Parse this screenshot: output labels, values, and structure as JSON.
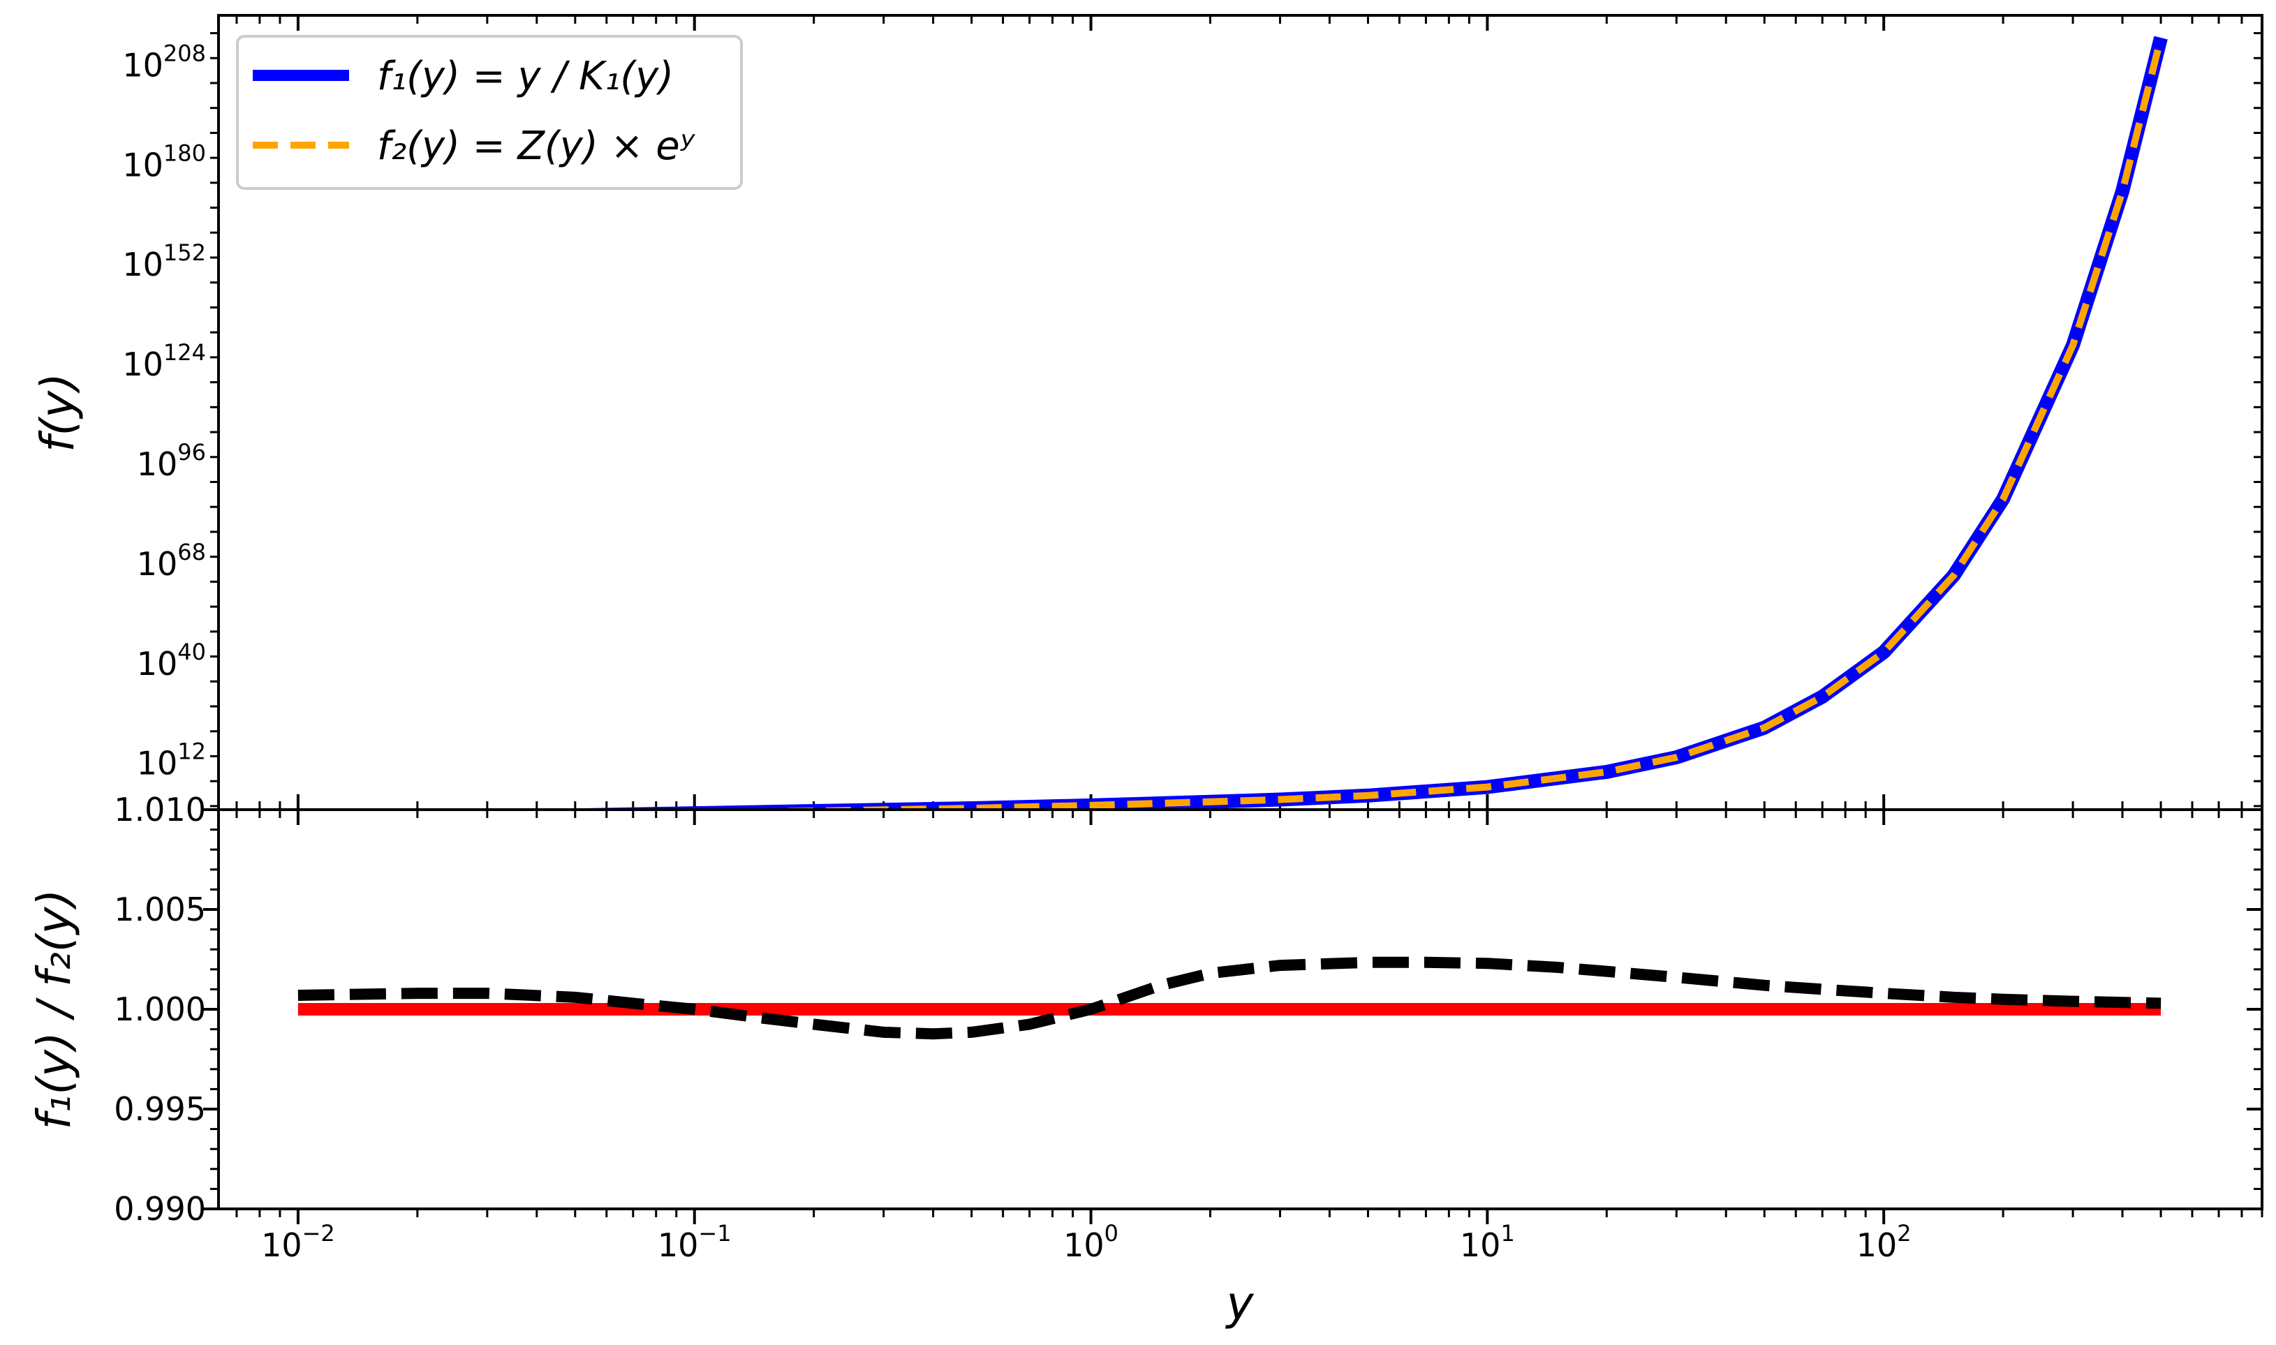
{
  "chart_data": [
    {
      "id": "top",
      "type": "line",
      "xlabel": "",
      "ylabel": "f(y)",
      "xscale": "log",
      "yscale": "log",
      "xlim": [
        0.0063,
        900
      ],
      "ylim_log10": [
        -1,
        222
      ],
      "yticks": [
        {
          "exp": "12",
          "value": 12
        },
        {
          "exp": "40",
          "value": 40
        },
        {
          "exp": "68",
          "value": 68
        },
        {
          "exp": "96",
          "value": 96
        },
        {
          "exp": "124",
          "value": 124
        },
        {
          "exp": "152",
          "value": 152
        },
        {
          "exp": "180",
          "value": 180
        },
        {
          "exp": "208",
          "value": 208
        }
      ],
      "legend": {
        "placement": "top-left",
        "entries": [
          {
            "label": "f₁(y) = y / K₁(y)",
            "color": "#0000ff",
            "style": "solid"
          },
          {
            "label": "f₂(y) = Z(y) × eʸ",
            "color": "#ffa500",
            "style": "dashed"
          }
        ]
      },
      "series": [
        {
          "name": "f₁(y) = y / K₁(y)",
          "color": "#0000ff",
          "style": "solid",
          "x": [
            0.01,
            0.02,
            0.05,
            0.1,
            0.2,
            0.5,
            1,
            2,
            3,
            5,
            10,
            20,
            30,
            50,
            70,
            100,
            150,
            200,
            300,
            400,
            500
          ],
          "log10_y": [
            -4.0,
            -3.4,
            -2.6,
            -2.0,
            -1.4,
            -0.6,
            0.2,
            1.2,
            1.85,
            2.95,
            5.35,
            9.6,
            13.7,
            22.0,
            30.7,
            43.2,
            64.7,
            86.2,
            129.4,
            172.6,
            215.7
          ]
        },
        {
          "name": "f₂(y) = Z(y) × eʸ",
          "color": "#ffa500",
          "style": "dashed",
          "x": [
            0.01,
            0.02,
            0.05,
            0.1,
            0.2,
            0.5,
            1,
            2,
            3,
            5,
            10,
            20,
            30,
            50,
            70,
            100,
            150,
            200,
            300,
            400,
            500
          ],
          "log10_y": [
            -4.0,
            -3.4,
            -2.6,
            -2.0,
            -1.4,
            -0.6,
            0.2,
            1.2,
            1.85,
            2.95,
            5.35,
            9.6,
            13.7,
            22.0,
            30.7,
            43.2,
            64.7,
            86.2,
            129.4,
            172.6,
            215.7
          ]
        }
      ]
    },
    {
      "id": "bottom",
      "type": "line",
      "xlabel": "y",
      "ylabel": "f₁(y) / f₂(y)",
      "xscale": "log",
      "yscale": "linear",
      "xlim": [
        0.0063,
        900
      ],
      "ylim": [
        0.99,
        1.01
      ],
      "xticks": [
        {
          "base": "10",
          "exp": "−2",
          "value": 0.01
        },
        {
          "base": "10",
          "exp": "−1",
          "value": 0.1
        },
        {
          "base": "10",
          "exp": "0",
          "value": 1
        },
        {
          "base": "10",
          "exp": "1",
          "value": 10
        },
        {
          "base": "10",
          "exp": "2",
          "value": 100
        }
      ],
      "yticks": [
        "0.990",
        "0.995",
        "1.000",
        "1.005",
        "1.010"
      ],
      "ytick_values": [
        0.99,
        0.995,
        1.0,
        1.005,
        1.01
      ],
      "series": [
        {
          "name": "",
          "color": "#ff0000",
          "style": "solid",
          "x": [
            0.01,
            500
          ],
          "y": [
            1.0,
            1.0
          ]
        },
        {
          "name": "",
          "color": "#000000",
          "style": "dashed",
          "x": [
            0.01,
            0.02,
            0.03,
            0.05,
            0.07,
            0.1,
            0.15,
            0.2,
            0.3,
            0.4,
            0.5,
            0.7,
            1,
            1.5,
            2,
            3,
            5,
            7,
            10,
            15,
            20,
            30,
            50,
            70,
            100,
            150,
            200,
            300,
            500
          ],
          "y": [
            1.0007,
            1.0008,
            1.0008,
            1.0006,
            1.0003,
            1.0,
            0.99955,
            0.99925,
            0.99885,
            0.99877,
            0.99885,
            0.99925,
            1.0,
            1.0012,
            1.0018,
            1.0022,
            1.00235,
            1.00235,
            1.0023,
            1.0021,
            1.0019,
            1.0016,
            1.0012,
            1.001,
            1.0008,
            1.0006,
            1.0005,
            1.0004,
            1.0003
          ]
        }
      ]
    }
  ]
}
